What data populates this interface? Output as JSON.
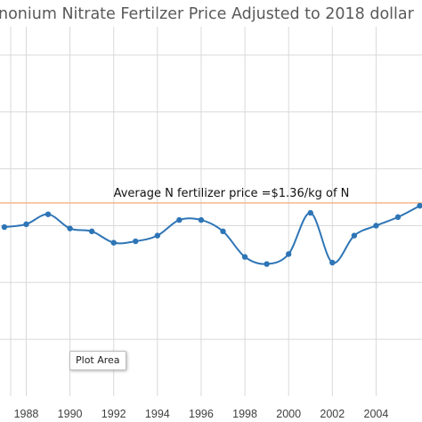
{
  "chart_data": {
    "type": "line",
    "title": "nonium Nitrate  Fertilzer Price Adjusted to 2018 dollar",
    "x": [
      1987,
      1988,
      1989,
      1990,
      1991,
      1992,
      1993,
      1994,
      1995,
      1996,
      1997,
      1998,
      1999,
      2000,
      2001,
      2002,
      2003,
      2004,
      2005,
      2006
    ],
    "series": [
      {
        "values": [
          1.19,
          1.21,
          1.28,
          1.18,
          1.16,
          1.08,
          1.09,
          1.13,
          1.24,
          1.24,
          1.16,
          0.98,
          0.93,
          1.0,
          1.29,
          0.94,
          1.13,
          1.2,
          1.26,
          1.34
        ]
      }
    ],
    "average_line": {
      "value": 1.36,
      "label": "Average N fertilizer price =$1.36/kg of N",
      "color": "#f4b183"
    },
    "x_tick_labels": [
      "1988",
      "1990",
      "1992",
      "1994",
      "1996",
      "1998",
      "2000",
      "2002",
      "2004"
    ],
    "x_tick_values": [
      1988,
      1990,
      1992,
      1994,
      1996,
      1998,
      2000,
      2002,
      2004
    ],
    "xlim": [
      1986.8,
      2006.1
    ],
    "ylim": [
      0,
      2.6
    ],
    "y_gridlines": [
      0.4,
      0.8,
      1.2,
      1.6,
      2.0,
      2.4
    ],
    "grid": true,
    "line_color": "#2e75b6",
    "tooltip_text": "Plot Area"
  }
}
